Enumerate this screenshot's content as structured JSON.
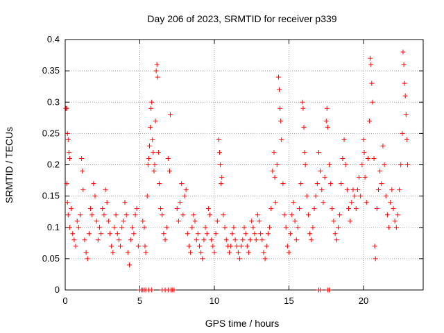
{
  "chart_data": {
    "type": "scatter",
    "title": "Day 206 of 2023, SRMTID for receiver p339",
    "xlabel": "GPS time / hours",
    "ylabel": "SRMTID / TECUs",
    "xlim": [
      0,
      24.0
    ],
    "ylim": [
      0,
      0.4
    ],
    "x_ticks": [
      0,
      5,
      10,
      15,
      20
    ],
    "y_ticks": [
      0,
      0.05,
      0.1,
      0.15,
      0.2,
      0.25,
      0.3,
      0.35,
      0.4
    ],
    "y_tick_labels": [
      "0",
      "0.05",
      "0.1",
      "0.15",
      "0.2",
      "0.25",
      "0.3",
      "0.35",
      "0.4"
    ],
    "grid": true,
    "marker": "+",
    "color": "#ff0000",
    "series": [
      {
        "name": "SRMTID",
        "points": [
          [
            0.05,
            0.29
          ],
          [
            0.1,
            0.29
          ],
          [
            0.15,
            0.25
          ],
          [
            0.2,
            0.24
          ],
          [
            0.25,
            0.22
          ],
          [
            0.3,
            0.21
          ],
          [
            0.1,
            0.17
          ],
          [
            0.15,
            0.14
          ],
          [
            0.2,
            0.12
          ],
          [
            0.3,
            0.1
          ],
          [
            0.4,
            0.13
          ],
          [
            0.5,
            0.09
          ],
          [
            0.6,
            0.08
          ],
          [
            0.7,
            0.07
          ],
          [
            0.8,
            0.11
          ],
          [
            0.9,
            0.1
          ],
          [
            1.0,
            0.12
          ],
          [
            1.1,
            0.21
          ],
          [
            1.15,
            0.19
          ],
          [
            1.2,
            0.16
          ],
          [
            1.3,
            0.08
          ],
          [
            1.4,
            0.06
          ],
          [
            1.5,
            0.05
          ],
          [
            1.6,
            0.09
          ],
          [
            1.7,
            0.13
          ],
          [
            1.8,
            0.12
          ],
          [
            1.9,
            0.17
          ],
          [
            2.0,
            0.15
          ],
          [
            2.1,
            0.11
          ],
          [
            2.2,
            0.08
          ],
          [
            2.3,
            0.1
          ],
          [
            2.4,
            0.09
          ],
          [
            2.5,
            0.13
          ],
          [
            2.6,
            0.12
          ],
          [
            2.7,
            0.16
          ],
          [
            2.8,
            0.14
          ],
          [
            2.9,
            0.11
          ],
          [
            3.0,
            0.09
          ],
          [
            3.1,
            0.07
          ],
          [
            3.2,
            0.06
          ],
          [
            3.3,
            0.1
          ],
          [
            3.4,
            0.12
          ],
          [
            3.5,
            0.09
          ],
          [
            3.6,
            0.08
          ],
          [
            3.7,
            0.07
          ],
          [
            3.8,
            0.1
          ],
          [
            3.9,
            0.11
          ],
          [
            4.0,
            0.14
          ],
          [
            4.1,
            0.12
          ],
          [
            4.2,
            0.06
          ],
          [
            4.3,
            0.04
          ],
          [
            4.4,
            0.08
          ],
          [
            4.5,
            0.1
          ],
          [
            4.6,
            0.09
          ],
          [
            4.7,
            0.12
          ],
          [
            4.8,
            0.13
          ],
          [
            4.9,
            0.07
          ],
          [
            5.0,
            0.0
          ],
          [
            5.1,
            0.0
          ],
          [
            5.2,
            0.0
          ],
          [
            5.3,
            0.0
          ],
          [
            5.4,
            0.0
          ],
          [
            5.6,
            0.0
          ],
          [
            5.8,
            0.0
          ],
          [
            5.2,
            0.11
          ],
          [
            5.3,
            0.1
          ],
          [
            5.35,
            0.07
          ],
          [
            5.4,
            0.06
          ],
          [
            5.5,
            0.15
          ],
          [
            5.55,
            0.2
          ],
          [
            5.6,
            0.21
          ],
          [
            5.65,
            0.23
          ],
          [
            5.7,
            0.26
          ],
          [
            5.75,
            0.29
          ],
          [
            5.8,
            0.3
          ],
          [
            5.85,
            0.24
          ],
          [
            5.9,
            0.22
          ],
          [
            5.95,
            0.19
          ],
          [
            6.0,
            0.2
          ],
          [
            6.05,
            0.27
          ],
          [
            6.1,
            0.35
          ],
          [
            6.15,
            0.36
          ],
          [
            6.2,
            0.34
          ],
          [
            6.25,
            0.22
          ],
          [
            6.3,
            0.17
          ],
          [
            6.4,
            0.13
          ],
          [
            6.5,
            0.12
          ],
          [
            6.6,
            0.09
          ],
          [
            6.7,
            0.08
          ],
          [
            6.8,
            0.1
          ],
          [
            6.9,
            0.21
          ],
          [
            7.0,
            0.19
          ],
          [
            7.1,
            0.0
          ],
          [
            7.2,
            0.0
          ],
          [
            7.3,
            0.0
          ],
          [
            6.5,
            0.0
          ],
          [
            6.7,
            0.0
          ],
          [
            6.9,
            0.0
          ],
          [
            7.05,
            0.28
          ],
          [
            7.5,
            0.13
          ],
          [
            7.6,
            0.11
          ],
          [
            7.7,
            0.14
          ],
          [
            7.8,
            0.17
          ],
          [
            7.9,
            0.12
          ],
          [
            8.0,
            0.15
          ],
          [
            8.1,
            0.16
          ],
          [
            8.2,
            0.09
          ],
          [
            8.3,
            0.07
          ],
          [
            8.4,
            0.06
          ],
          [
            8.5,
            0.1
          ],
          [
            8.6,
            0.12
          ],
          [
            8.7,
            0.11
          ],
          [
            8.8,
            0.08
          ],
          [
            8.9,
            0.09
          ],
          [
            9.0,
            0.07
          ],
          [
            9.1,
            0.06
          ],
          [
            9.2,
            0.05
          ],
          [
            9.3,
            0.08
          ],
          [
            9.4,
            0.1
          ],
          [
            9.5,
            0.09
          ],
          [
            9.6,
            0.13
          ],
          [
            9.7,
            0.12
          ],
          [
            9.8,
            0.08
          ],
          [
            9.9,
            0.07
          ],
          [
            10.0,
            0.06
          ],
          [
            10.1,
            0.09
          ],
          [
            10.2,
            0.11
          ],
          [
            10.3,
            0.24
          ],
          [
            10.35,
            0.22
          ],
          [
            10.4,
            0.2
          ],
          [
            10.45,
            0.17
          ],
          [
            10.5,
            0.18
          ],
          [
            10.6,
            0.12
          ],
          [
            10.7,
            0.1
          ],
          [
            10.8,
            0.08
          ],
          [
            10.9,
            0.07
          ],
          [
            11.0,
            0.06
          ],
          [
            11.1,
            0.07
          ],
          [
            11.2,
            0.09
          ],
          [
            11.3,
            0.1
          ],
          [
            11.4,
            0.08
          ],
          [
            11.5,
            0.07
          ],
          [
            11.6,
            0.06
          ],
          [
            11.7,
            0.05
          ],
          [
            11.8,
            0.07
          ],
          [
            11.9,
            0.08
          ],
          [
            12.0,
            0.1
          ],
          [
            12.1,
            0.09
          ],
          [
            12.2,
            0.07
          ],
          [
            12.3,
            0.06
          ],
          [
            12.4,
            0.08
          ],
          [
            12.5,
            0.11
          ],
          [
            12.6,
            0.1
          ],
          [
            12.7,
            0.09
          ],
          [
            12.8,
            0.08
          ],
          [
            12.9,
            0.12
          ],
          [
            13.0,
            0.11
          ],
          [
            13.1,
            0.09
          ],
          [
            13.2,
            0.08
          ],
          [
            13.3,
            0.06
          ],
          [
            13.4,
            0.05
          ],
          [
            13.5,
            0.07
          ],
          [
            13.6,
            0.09
          ],
          [
            13.7,
            0.1
          ],
          [
            13.8,
            0.13
          ],
          [
            13.9,
            0.19
          ],
          [
            14.0,
            0.22
          ],
          [
            14.05,
            0.18
          ],
          [
            14.1,
            0.14
          ],
          [
            14.2,
            0.2
          ],
          [
            14.3,
            0.34
          ],
          [
            14.35,
            0.32
          ],
          [
            14.4,
            0.29
          ],
          [
            14.45,
            0.27
          ],
          [
            14.5,
            0.24
          ],
          [
            14.6,
            0.17
          ],
          [
            14.7,
            0.12
          ],
          [
            14.8,
            0.1
          ],
          [
            14.9,
            0.07
          ],
          [
            15.0,
            0.06
          ],
          [
            15.1,
            0.09
          ],
          [
            15.2,
            0.12
          ],
          [
            15.3,
            0.14
          ],
          [
            15.4,
            0.11
          ],
          [
            15.5,
            0.08
          ],
          [
            15.6,
            0.1
          ],
          [
            15.7,
            0.13
          ],
          [
            15.8,
            0.17
          ],
          [
            15.9,
            0.3
          ],
          [
            15.95,
            0.29
          ],
          [
            16.0,
            0.26
          ],
          [
            16.05,
            0.22
          ],
          [
            16.1,
            0.2
          ],
          [
            16.2,
            0.15
          ],
          [
            16.3,
            0.12
          ],
          [
            16.4,
            0.09
          ],
          [
            16.5,
            0.08
          ],
          [
            16.6,
            0.1
          ],
          [
            16.7,
            0.13
          ],
          [
            16.8,
            0.15
          ],
          [
            16.9,
            0.17
          ],
          [
            17.0,
            0.22
          ],
          [
            17.1,
            0.19
          ],
          [
            17.2,
            0.16
          ],
          [
            17.3,
            0.14
          ],
          [
            17.4,
            0.18
          ],
          [
            17.5,
            0.27
          ],
          [
            17.55,
            0.29
          ],
          [
            17.6,
            0.26
          ],
          [
            17.7,
            0.2
          ],
          [
            17.8,
            0.17
          ],
          [
            17.9,
            0.13
          ],
          [
            18.0,
            0.11
          ],
          [
            18.1,
            0.09
          ],
          [
            18.2,
            0.08
          ],
          [
            18.3,
            0.1
          ],
          [
            18.4,
            0.12
          ],
          [
            18.5,
            0.17
          ],
          [
            18.6,
            0.21
          ],
          [
            18.7,
            0.24
          ],
          [
            18.8,
            0.2
          ],
          [
            18.9,
            0.16
          ],
          [
            19.0,
            0.13
          ],
          [
            19.1,
            0.11
          ],
          [
            19.2,
            0.14
          ],
          [
            19.3,
            0.16
          ],
          [
            19.4,
            0.15
          ],
          [
            19.5,
            0.13
          ],
          [
            19.6,
            0.16
          ],
          [
            19.7,
            0.18
          ],
          [
            19.8,
            0.15
          ],
          [
            19.9,
            0.2
          ],
          [
            20.0,
            0.24
          ],
          [
            20.05,
            0.22
          ],
          [
            20.1,
            0.18
          ],
          [
            20.2,
            0.14
          ],
          [
            20.3,
            0.21
          ],
          [
            20.4,
            0.27
          ],
          [
            20.45,
            0.37
          ],
          [
            20.5,
            0.36
          ],
          [
            20.55,
            0.33
          ],
          [
            20.6,
            0.3
          ],
          [
            20.7,
            0.21
          ],
          [
            20.75,
            0.07
          ],
          [
            20.8,
            0.05
          ],
          [
            20.9,
            0.13
          ],
          [
            21.0,
            0.16
          ],
          [
            21.1,
            0.19
          ],
          [
            21.2,
            0.17
          ],
          [
            21.3,
            0.23
          ],
          [
            21.4,
            0.2
          ],
          [
            21.5,
            0.15
          ],
          [
            21.6,
            0.12
          ],
          [
            21.7,
            0.1
          ],
          [
            21.8,
            0.14
          ],
          [
            21.9,
            0.16
          ],
          [
            22.0,
            0.13
          ],
          [
            22.1,
            0.11
          ],
          [
            22.2,
            0.1
          ],
          [
            22.3,
            0.12
          ],
          [
            22.4,
            0.16
          ],
          [
            22.5,
            0.2
          ],
          [
            22.6,
            0.25
          ],
          [
            22.65,
            0.38
          ],
          [
            22.7,
            0.36
          ],
          [
            22.75,
            0.33
          ],
          [
            22.8,
            0.31
          ],
          [
            22.85,
            0.28
          ],
          [
            22.9,
            0.24
          ],
          [
            22.95,
            0.2
          ],
          [
            17.0,
            0.0
          ],
          [
            17.1,
            0.0
          ],
          [
            17.6,
            0.0
          ],
          [
            17.7,
            0.0
          ]
        ]
      }
    ]
  }
}
